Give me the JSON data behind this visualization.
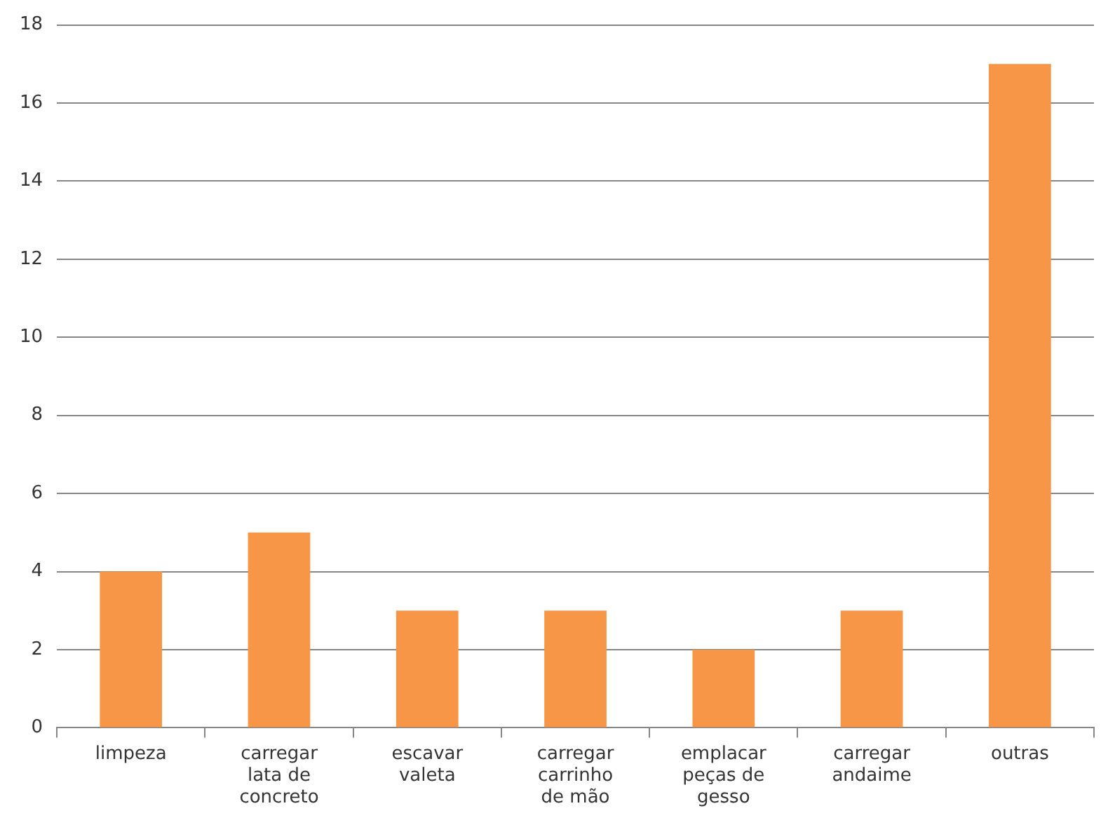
{
  "chart_data": {
    "type": "bar",
    "categories": [
      "limpeza",
      "carregar lata de concreto",
      "escavar valeta",
      "carregar carrinho de mão",
      "emplacar peças de gesso",
      "carregar andaime",
      "outras"
    ],
    "values": [
      4,
      5,
      3,
      3,
      2,
      3,
      17
    ],
    "color": "#f79646",
    "ylim": [
      0,
      18
    ],
    "yticks": [
      0,
      2,
      4,
      6,
      8,
      10,
      12,
      14,
      16,
      18
    ],
    "grid": "y"
  }
}
